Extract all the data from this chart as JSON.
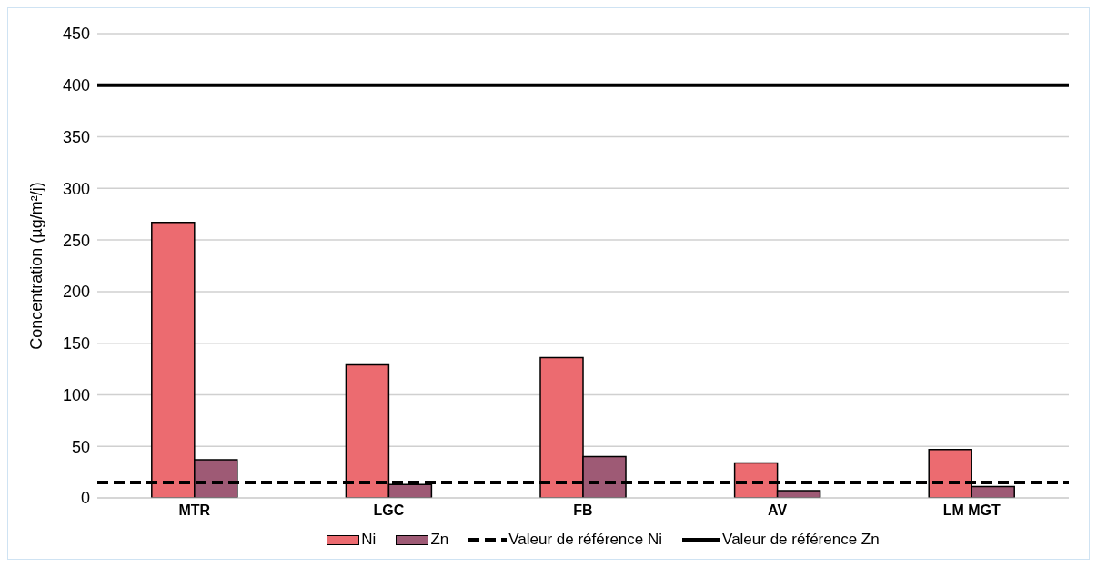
{
  "chart_data": {
    "type": "bar",
    "ylabel": "Concentration (µg/m²/j)",
    "categories": [
      "MTR",
      "LGC",
      "FB",
      "AV",
      "LM MGT"
    ],
    "series": [
      {
        "name": "Ni",
        "color": "#ec6b70",
        "values": [
          267,
          129,
          136,
          34,
          47
        ]
      },
      {
        "name": "Zn",
        "color": "#9e5a75",
        "values": [
          37,
          13,
          40,
          7,
          11
        ]
      }
    ],
    "ref_lines": [
      {
        "axis": "y",
        "value": 15,
        "label": "Valeur de référence Ni",
        "color": "#000000",
        "line_style": "dashed"
      },
      {
        "axis": "y",
        "value": 400,
        "label": "Valeur de référence Zn",
        "color": "#000000",
        "line_style": "solid"
      }
    ],
    "ylim": [
      0,
      450
    ],
    "yticks": [
      0,
      50,
      100,
      150,
      200,
      250,
      300,
      350,
      400,
      450
    ],
    "grid": "y",
    "legend": "bottom"
  }
}
